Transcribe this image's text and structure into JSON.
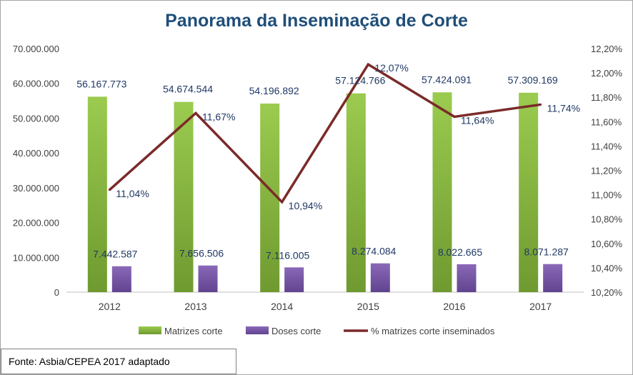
{
  "chart_data": {
    "type": "bar",
    "title": "Panorama da Inseminação de Corte",
    "categories": [
      "2012",
      "2013",
      "2014",
      "2015",
      "2016",
      "2017"
    ],
    "y_left": {
      "range": [
        0,
        70000000
      ],
      "ticks": [
        "0",
        "10.000.000",
        "20.000.000",
        "30.000.000",
        "40.000.000",
        "50.000.000",
        "60.000.000",
        "70.000.000"
      ]
    },
    "y_right": {
      "range": [
        10.2,
        12.2
      ],
      "ticks": [
        "10,20%",
        "10,40%",
        "10,60%",
        "10,80%",
        "11,00%",
        "11,20%",
        "11,40%",
        "11,60%",
        "11,80%",
        "12,00%",
        "12,20%"
      ]
    },
    "series": [
      {
        "name": "Matrizes corte",
        "kind": "bar",
        "axis": "left",
        "color": "#8fbc45",
        "values": [
          56167773,
          54674544,
          54196892,
          57124766,
          57424091,
          57309169
        ],
        "labels": [
          "56.167.773",
          "54.674.544",
          "54.196.892",
          "57.124.766",
          "57.424.091",
          "57.309.169"
        ]
      },
      {
        "name": "Doses corte",
        "kind": "bar",
        "axis": "left",
        "color": "#7a5aa8",
        "values": [
          7442587,
          7656506,
          7116005,
          8274084,
          8022665,
          8071287
        ],
        "labels": [
          "7.442.587",
          "7.656.506",
          "7.116.005",
          "8.274.084",
          "8.022.665",
          "8.071.287"
        ]
      },
      {
        "name": "% matrizes corte inseminados",
        "kind": "line",
        "axis": "right",
        "color": "#7b2a2a",
        "values": [
          11.04,
          11.67,
          10.94,
          12.07,
          11.64,
          11.74
        ],
        "labels": [
          "11,04%",
          "11,67%",
          "10,94%",
          "12,07%",
          "11,64%",
          "11,74%"
        ]
      }
    ],
    "grid": false,
    "legend_position": "bottom"
  },
  "source": "Fonte: Asbia/CEPEA 2017 adaptado"
}
